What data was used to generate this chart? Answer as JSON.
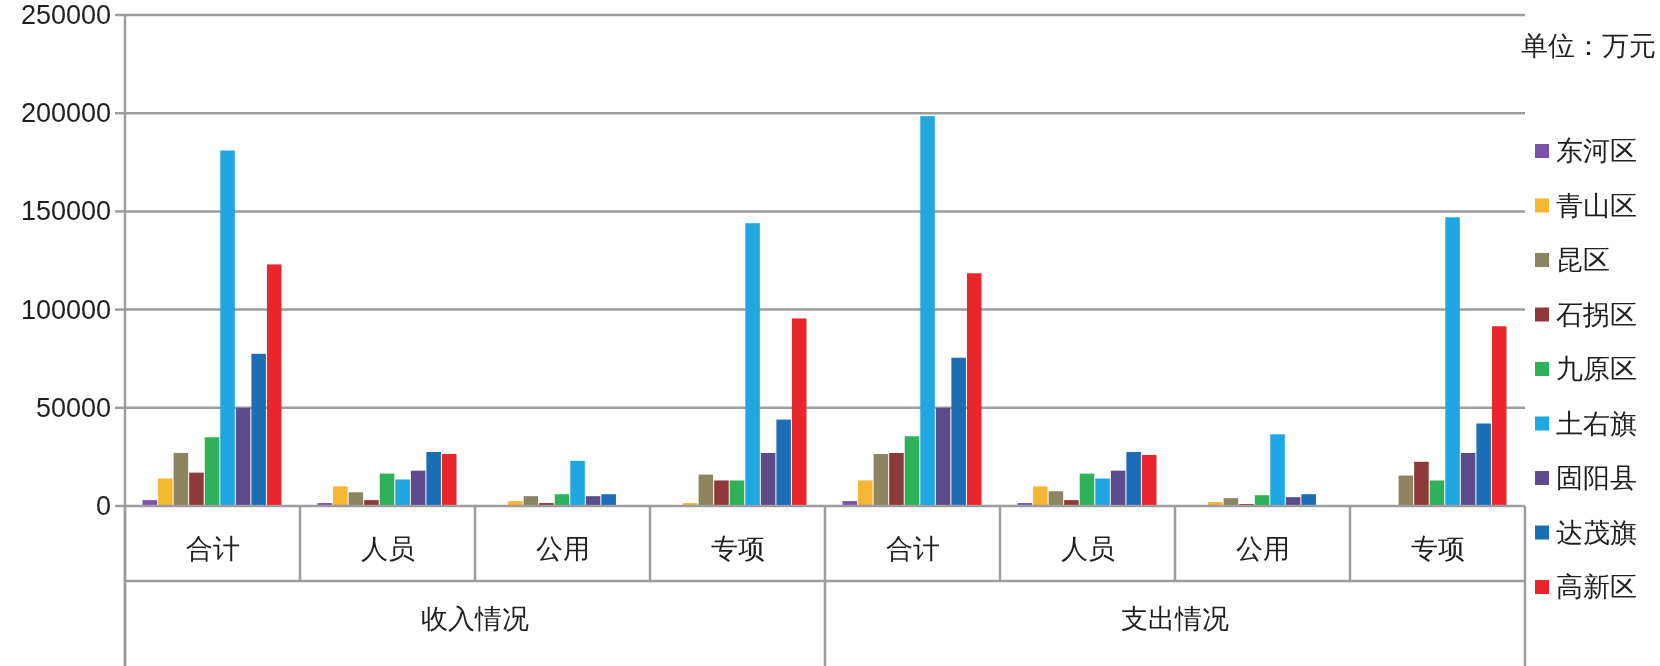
{
  "chart_data": {
    "type": "bar",
    "ylabel": "单位：万元",
    "categories": [
      "合计",
      "人员",
      "公用",
      "专项",
      "合计",
      "人员",
      "公用",
      "专项"
    ],
    "annotations": [
      "收入情况",
      "支出情况"
    ],
    "ylim": [
      0,
      250000
    ],
    "yticks": [
      0,
      50000,
      100000,
      150000,
      200000,
      250000
    ],
    "grid": "y",
    "legend": "right",
    "series": [
      {
        "name": "东河区",
        "color": "#7b52a8",
        "values": [
          3000,
          1500,
          null,
          0,
          2500,
          1500,
          null,
          0
        ]
      },
      {
        "name": "青山区",
        "color": "#f5b731",
        "values": [
          14000,
          10000,
          2500,
          1500,
          13000,
          10000,
          2000,
          0
        ]
      },
      {
        "name": "昆区",
        "color": "#8c8560",
        "values": [
          27000,
          7000,
          5000,
          16000,
          26500,
          7500,
          4000,
          15500
        ]
      },
      {
        "name": "石拐区",
        "color": "#8e3a3a",
        "values": [
          17000,
          3000,
          1500,
          13000,
          27000,
          3000,
          1000,
          22500
        ]
      },
      {
        "name": "九原区",
        "color": "#2fb15a",
        "values": [
          35000,
          16500,
          6000,
          13000,
          35500,
          16500,
          5500,
          13000
        ]
      },
      {
        "name": "土右旗",
        "color": "#1ea7e1",
        "values": [
          181000,
          13500,
          23000,
          144000,
          198500,
          14000,
          36500,
          147000
        ]
      },
      {
        "name": "固阳县",
        "color": "#5e4b8b",
        "values": [
          50000,
          18000,
          5000,
          27000,
          50000,
          18000,
          4500,
          27000
        ]
      },
      {
        "name": "达茂旗",
        "color": "#1b6db5",
        "values": [
          77500,
          27500,
          6000,
          44000,
          75500,
          27500,
          6000,
          42000
        ]
      },
      {
        "name": "高新区",
        "color": "#e8262b",
        "values": [
          123000,
          26500,
          0,
          95500,
          118500,
          26000,
          0,
          91500
        ]
      }
    ]
  }
}
